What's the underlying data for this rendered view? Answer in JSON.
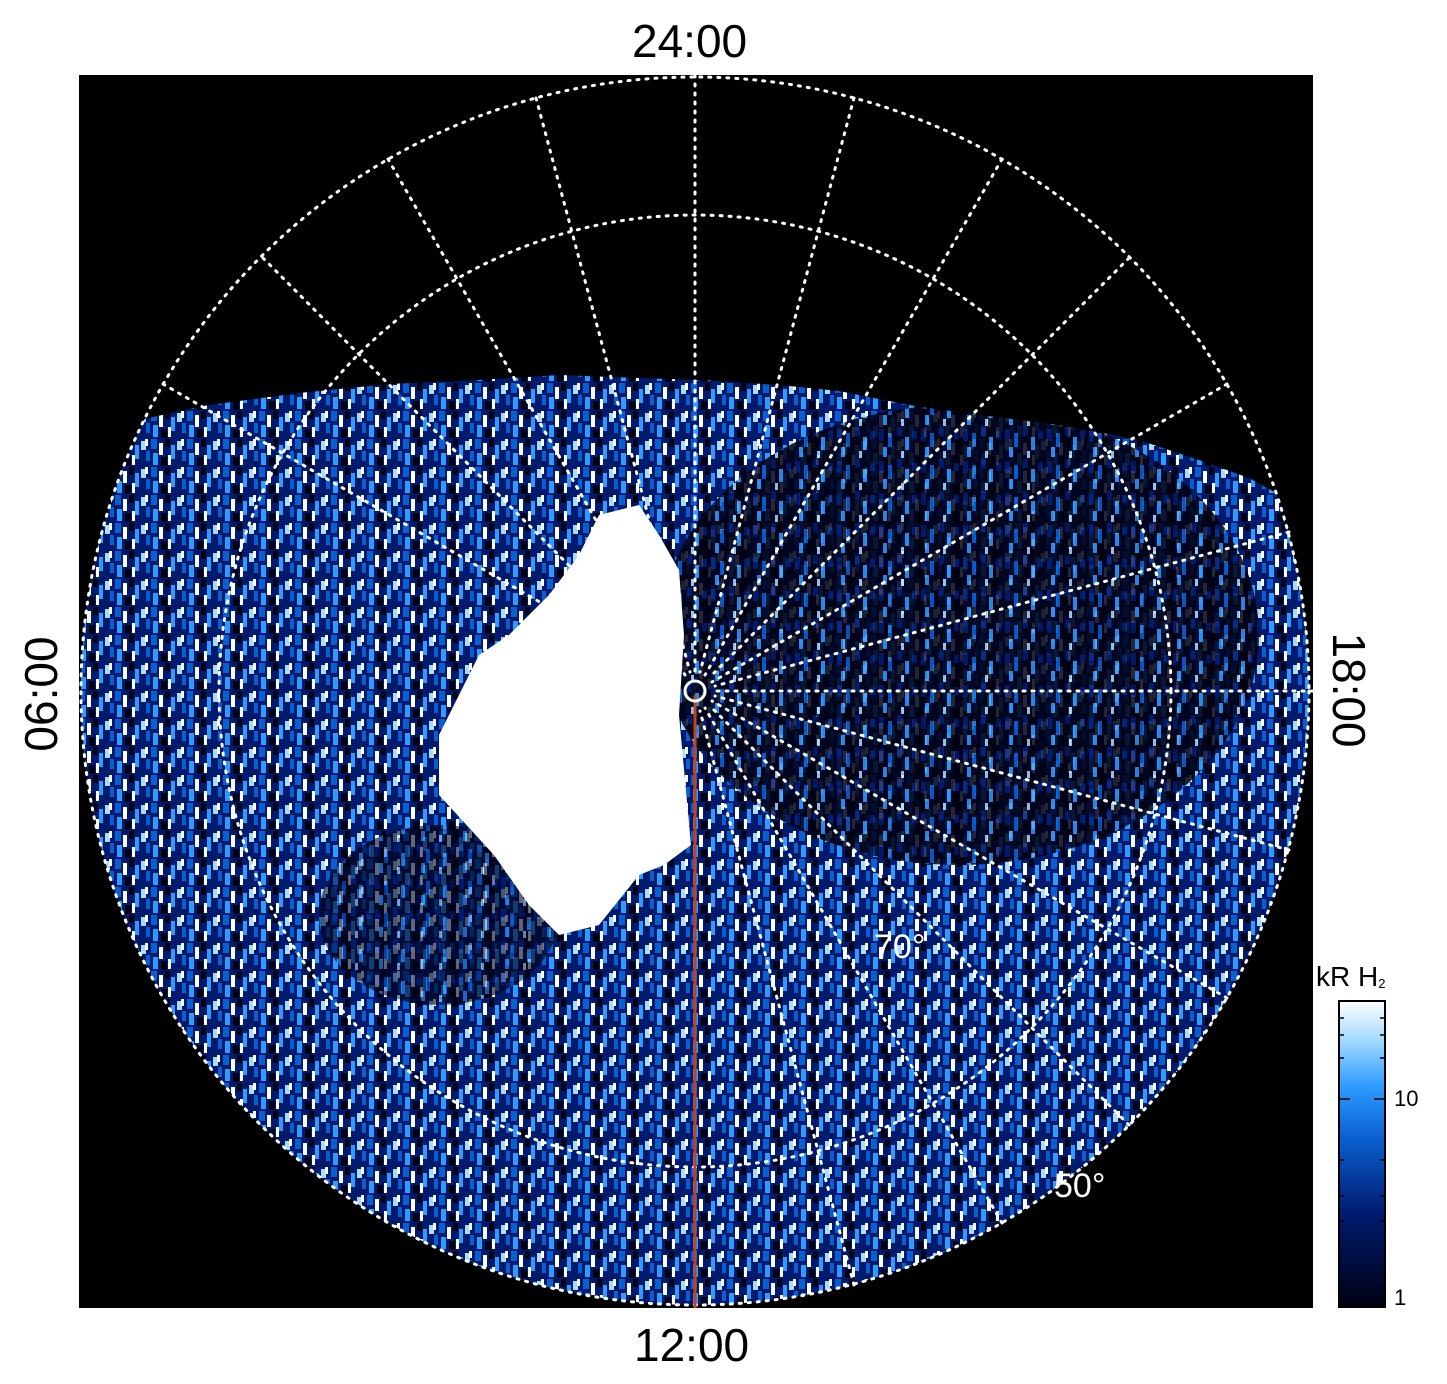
{
  "title": "",
  "hour_labels": {
    "top": "24:00",
    "left": "06:00",
    "right": "18:00",
    "bottom": "12:00"
  },
  "latitude_labels": {
    "lat_70": "70°",
    "lat_50": "50°"
  },
  "colorbar": {
    "unit_main": "kR H",
    "unit_sub": "2",
    "ticks": [
      "10",
      "1"
    ],
    "scale": "log",
    "colors": [
      "#000010",
      "#001a6e",
      "#0a5fd0",
      "#2d9bff",
      "#a8dcff",
      "#ffffff"
    ]
  },
  "colors": {
    "background": "#000000",
    "grid": "#ffffff",
    "meridian_line": "#c8401a"
  }
}
